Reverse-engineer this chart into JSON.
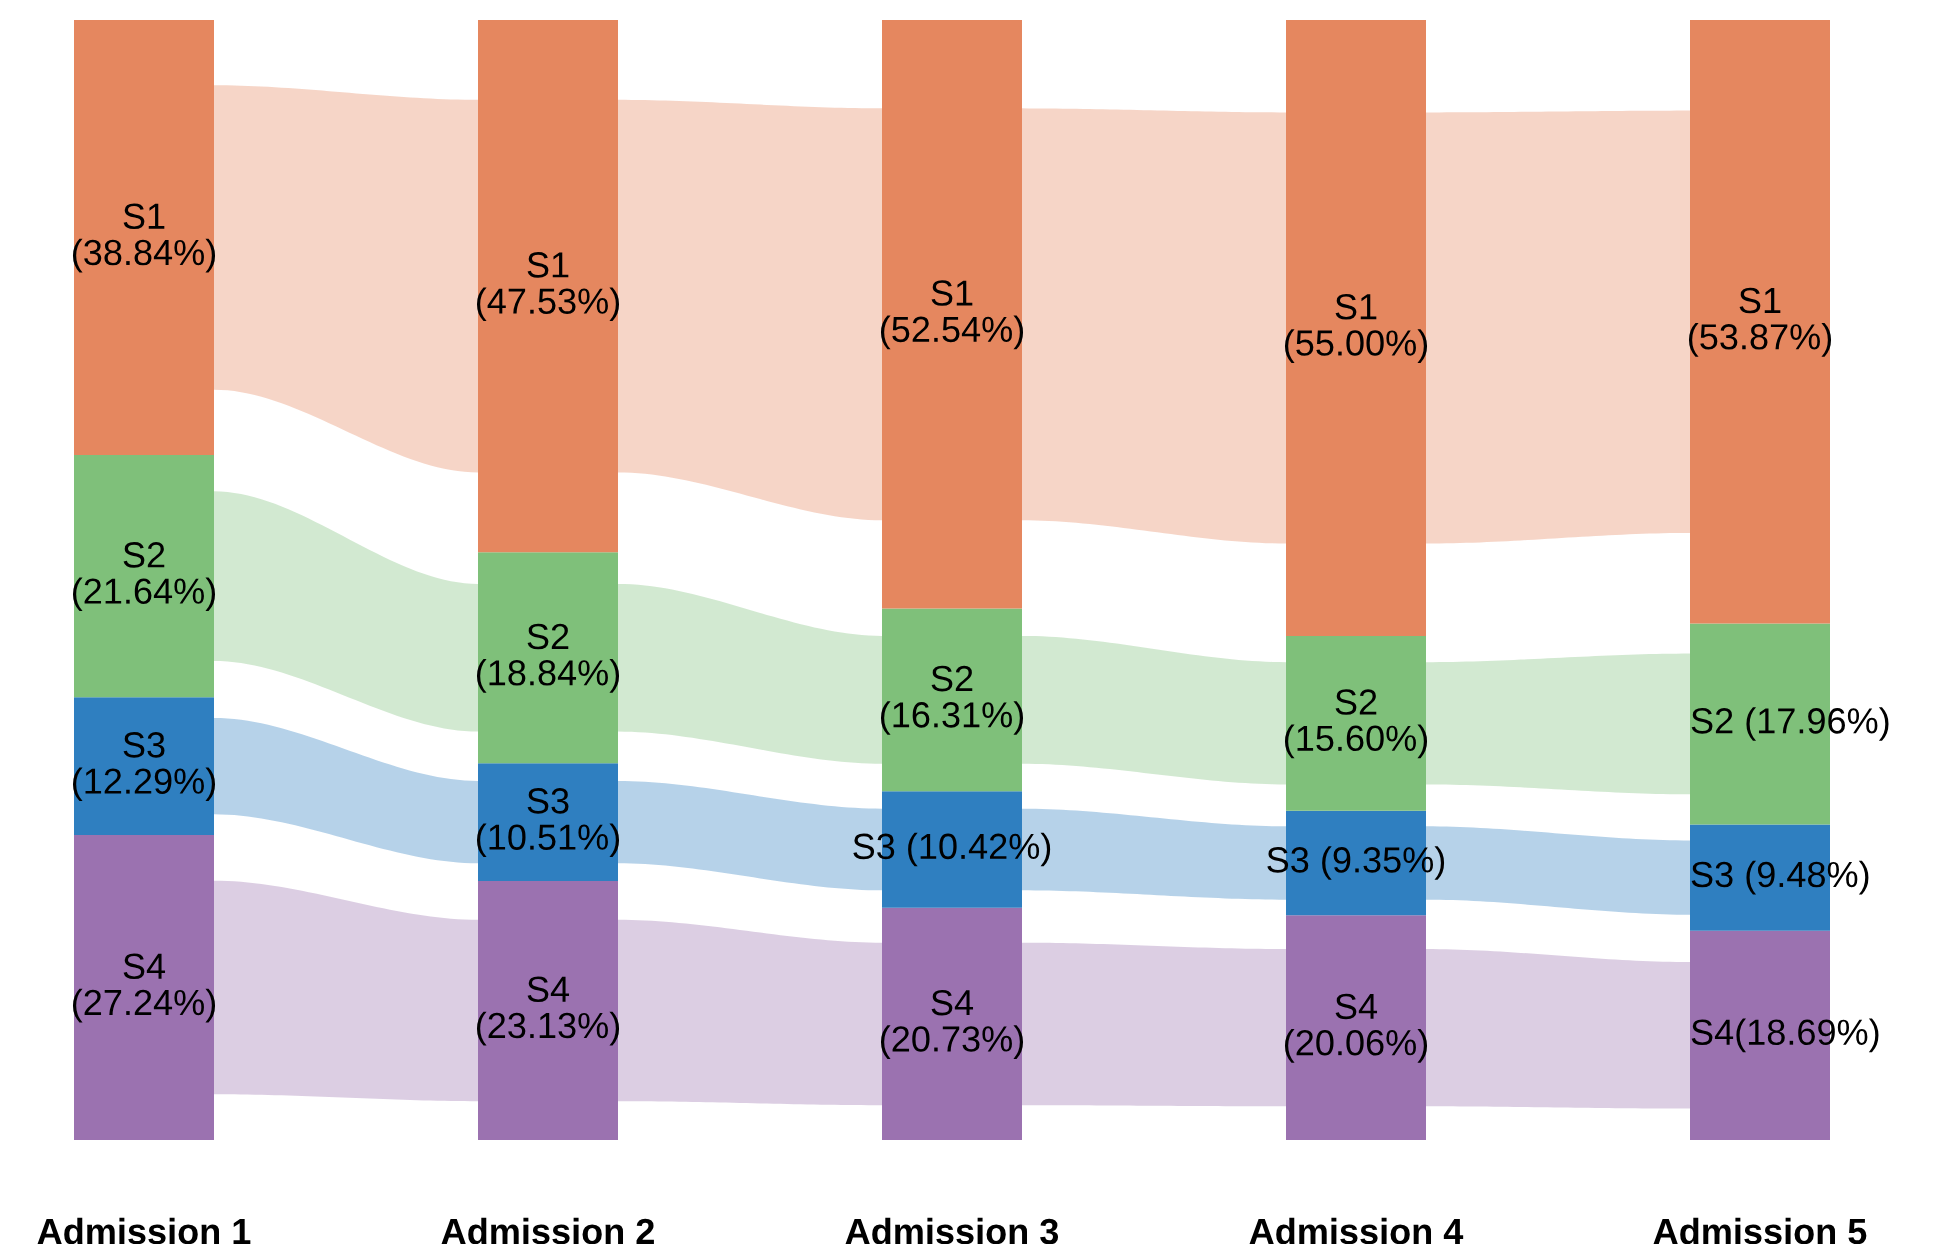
{
  "chart_data": {
    "type": "other",
    "categories": [
      "Admission 1",
      "Admission 2",
      "Admission 3",
      "Admission 4",
      "Admission 5"
    ],
    "series": [
      {
        "color": "#9b72b0",
        "values": [
          27.24,
          23.13,
          20.73,
          20.06,
          18.69
        ],
        "value_labels": [
          "S4\n(27.24%)",
          "S4\n(23.13%)",
          "S4\n(20.73%)",
          "S4\n(20.06%)",
          "S4(18.69%)"
        ]
      },
      {
        "color": "#2f7fc0",
        "values": [
          12.29,
          10.51,
          10.42,
          9.35,
          9.48
        ],
        "value_labels": [
          "S3\n(12.29%)",
          "S3\n(10.51%)",
          "S3 (10.42%)",
          "S3 (9.35%)",
          "S3 (9.48%)"
        ]
      },
      {
        "color": "#7fc07a",
        "values": [
          21.64,
          18.84,
          16.31,
          15.6,
          17.96
        ],
        "value_labels": [
          "S2\n(21.64%)",
          "S2\n(18.84%)",
          "S2\n(16.31%)",
          "S2\n(15.60%)",
          "S2 (17.96%)"
        ]
      },
      {
        "color": "#e5875f",
        "values": [
          38.84,
          47.53,
          52.54,
          55.0,
          53.87
        ],
        "value_labels": [
          "S1\n(38.84%)",
          "S1\n(47.53%)",
          "S1\n(52.54%)",
          "S1\n(55.00%)",
          "S1\n(53.87%)"
        ]
      }
    ]
  }
}
